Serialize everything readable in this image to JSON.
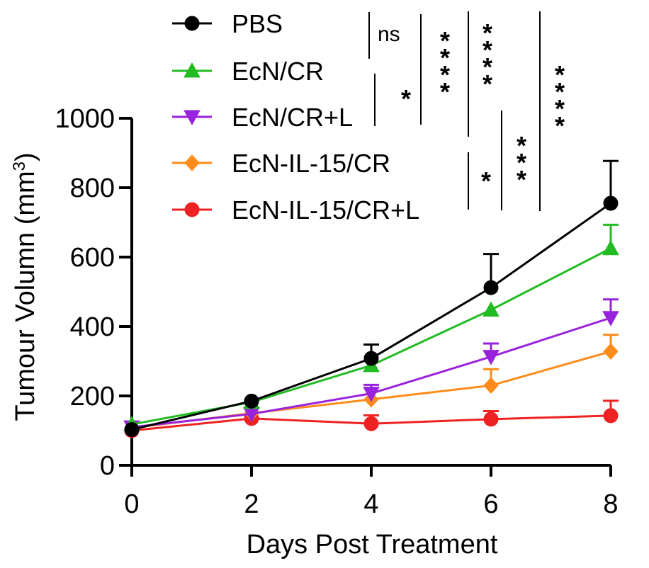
{
  "chart_data": {
    "type": "line",
    "xlabel": "Days Post Treatment",
    "ylabel": "Tumour Volumn (mm",
    "ylabel_superscript": "3",
    "ylabel_close": ")",
    "xlim": [
      0,
      8
    ],
    "ylim": [
      0,
      1000
    ],
    "x_ticks": [
      0,
      2,
      4,
      6,
      8
    ],
    "y_ticks": [
      0,
      200,
      400,
      600,
      800,
      1000
    ],
    "legend_position": "top-center",
    "series": [
      {
        "name": "PBS",
        "color": "#000000",
        "marker": "circle",
        "x": [
          0,
          2,
          4,
          6,
          8
        ],
        "y": [
          103,
          185,
          308,
          512,
          755
        ],
        "err": [
          0,
          0,
          40,
          97,
          122
        ]
      },
      {
        "name": "EcN/CR",
        "color": "#22bb22",
        "marker": "triangle-up",
        "x": [
          0,
          2,
          4,
          6,
          8
        ],
        "y": [
          118,
          182,
          288,
          448,
          625
        ],
        "err": [
          0,
          0,
          0,
          0,
          68
        ]
      },
      {
        "name": "EcN/CR+L",
        "color": "#9922dd",
        "marker": "triangle-down",
        "x": [
          0,
          2,
          4,
          6,
          8
        ],
        "y": [
          110,
          148,
          207,
          313,
          425
        ],
        "err": [
          0,
          0,
          25,
          38,
          53
        ]
      },
      {
        "name": "EcN-IL-15/CR",
        "color": "#ff8c1a",
        "marker": "diamond",
        "x": [
          0,
          2,
          4,
          6,
          8
        ],
        "y": [
          108,
          150,
          190,
          230,
          328
        ],
        "err": [
          0,
          0,
          0,
          47,
          48
        ]
      },
      {
        "name": "EcN-IL-15/CR+L",
        "color": "#ee2222",
        "marker": "circle",
        "x": [
          0,
          2,
          4,
          6,
          8
        ],
        "y": [
          100,
          135,
          120,
          133,
          143
        ],
        "err": [
          0,
          0,
          24,
          23,
          43
        ]
      }
    ],
    "significance": [
      {
        "label": "ns",
        "comparison": "PBS vs EcN/CR"
      },
      {
        "label": "*",
        "comparison": "EcN/CR vs EcN/CR+L"
      },
      {
        "label": "****",
        "comparison": "PBS vs EcN/CR+L"
      },
      {
        "label": "****",
        "comparison": "PBS vs EcN-IL-15/CR"
      },
      {
        "label": "*",
        "comparison": "EcN/CR+L vs EcN-IL-15/CR"
      },
      {
        "label": "***",
        "comparison": "EcN/CR+L vs EcN-IL-15/CR+L"
      },
      {
        "label": "****",
        "comparison": "PBS vs EcN-IL-15/CR+L"
      }
    ]
  }
}
